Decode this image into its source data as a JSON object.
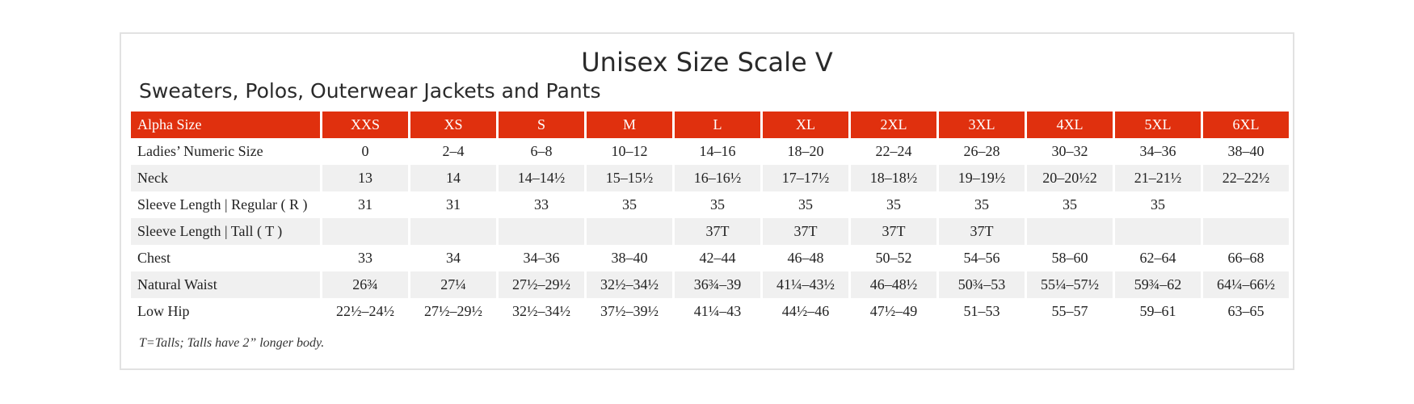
{
  "header": {
    "title": "Unisex Size Scale V",
    "subtitle": "Sweaters, Polos, Outerwear Jackets and Pants"
  },
  "table": {
    "columns": [
      "Alpha Size",
      "XXS",
      "XS",
      "S",
      "M",
      "L",
      "XL",
      "2XL",
      "3XL",
      "4XL",
      "5XL",
      "6XL"
    ],
    "rows": [
      [
        "Ladies’ Numeric Size",
        "0",
        "2–4",
        "6–8",
        "10–12",
        "14–16",
        "18–20",
        "22–24",
        "26–28",
        "30–32",
        "34–36",
        "38–40"
      ],
      [
        "Neck",
        "13",
        "14",
        "14–14½",
        "15–15½",
        "16–16½",
        "17–17½",
        "18–18½",
        "19–19½",
        "20–20½2",
        "21–21½",
        "22–22½"
      ],
      [
        "Sleeve Length | Regular ( R )",
        "31",
        "31",
        "33",
        "35",
        "35",
        "35",
        "35",
        "35",
        "35",
        "35",
        null
      ],
      [
        "Sleeve Length | Tall ( T )",
        null,
        null,
        null,
        null,
        "37T",
        "37T",
        "37T",
        "37T",
        null,
        null,
        null
      ],
      [
        "Chest",
        "33",
        "34",
        "34–36",
        "38–40",
        "42–44",
        "46–48",
        "50–52",
        "54–56",
        "58–60",
        "62–64",
        "66–68"
      ],
      [
        "Natural Waist",
        "26¾",
        "27¼",
        "27½–29½",
        "32½–34½",
        "36¾–39",
        "41¼–43½",
        "46–48½",
        "50¾–53",
        "55¼–57½",
        "59¾–62",
        "64¼–66½"
      ],
      [
        "Low Hip",
        "22½–24½",
        "27½–29½",
        "32½–34½",
        "37½–39½",
        "41¼–43",
        "44½–46",
        "47½–49",
        "51–53",
        "55–57",
        "59–61",
        "63–65"
      ]
    ]
  },
  "footnote": "T=Talls; Talls have 2” longer body."
}
